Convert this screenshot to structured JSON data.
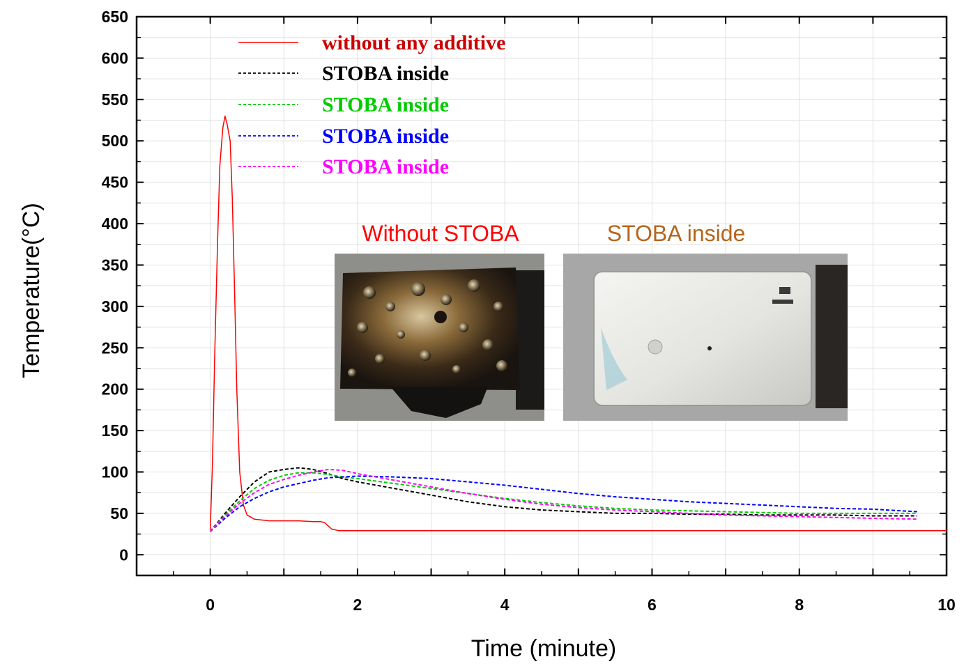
{
  "chart_data": {
    "type": "line",
    "xlabel": "Time (minute)",
    "ylabel": "Temperature(°C)",
    "xlim": [
      -1,
      10
    ],
    "ylim": [
      -25,
      650
    ],
    "x_ticks": [
      "0",
      "2",
      "4",
      "6",
      "8",
      "10"
    ],
    "y_ticks": [
      "0",
      "50",
      "100",
      "150",
      "200",
      "250",
      "300",
      "350",
      "400",
      "450",
      "500",
      "550",
      "600",
      "650"
    ],
    "grid": true,
    "legend_position": "top-left",
    "series": [
      {
        "name": "without any additive",
        "color": "#ff0000",
        "style": "solid",
        "x": [
          0,
          0.03,
          0.06,
          0.1,
          0.13,
          0.17,
          0.2,
          0.23,
          0.27,
          0.3,
          0.33,
          0.36,
          0.4,
          0.45,
          0.5,
          0.6,
          0.8,
          1.0,
          1.2,
          1.4,
          1.5,
          1.55,
          1.6,
          1.65,
          1.75,
          2.0,
          3.0,
          4.0,
          5.0,
          6.0,
          7.0,
          8.0,
          9.0,
          10.0
        ],
        "y": [
          30,
          110,
          240,
          380,
          470,
          515,
          530,
          520,
          500,
          430,
          320,
          200,
          100,
          60,
          48,
          43,
          41,
          41,
          41,
          40,
          40,
          39,
          35,
          31,
          29,
          29,
          29,
          29,
          29,
          29,
          29,
          29,
          29,
          29
        ]
      },
      {
        "name": "STOBA inside",
        "color": "#000000",
        "style": "dashed",
        "x": [
          0,
          0.2,
          0.4,
          0.6,
          0.8,
          1.0,
          1.2,
          1.4,
          1.6,
          1.8,
          2.0,
          2.5,
          3.0,
          3.5,
          4.0,
          4.5,
          5.0,
          5.5,
          6.0,
          6.5,
          7.0,
          7.5,
          8.0,
          8.5,
          9.0,
          9.6
        ],
        "y": [
          28,
          50,
          70,
          88,
          100,
          103,
          105,
          103,
          98,
          92,
          88,
          80,
          72,
          64,
          58,
          54,
          52,
          50,
          50,
          49,
          49,
          48,
          48,
          48,
          47,
          47
        ]
      },
      {
        "name": "STOBA inside",
        "color": "#00cc00",
        "style": "dashed",
        "x": [
          0,
          0.2,
          0.4,
          0.6,
          0.8,
          1.0,
          1.2,
          1.4,
          1.6,
          1.8,
          2.0,
          2.5,
          3.0,
          3.5,
          4.0,
          4.5,
          5.0,
          5.5,
          6.0,
          6.5,
          7.0,
          7.5,
          8.0,
          8.5,
          9.0,
          9.6
        ],
        "y": [
          28,
          48,
          65,
          80,
          90,
          96,
          99,
          99,
          97,
          94,
          92,
          86,
          80,
          74,
          68,
          63,
          59,
          56,
          54,
          53,
          52,
          51,
          50,
          50,
          50,
          50
        ]
      },
      {
        "name": "STOBA inside",
        "color": "#0000ff",
        "style": "dashed",
        "x": [
          0,
          0.2,
          0.4,
          0.6,
          0.8,
          1.0,
          1.2,
          1.4,
          1.6,
          1.8,
          2.0,
          2.5,
          3.0,
          3.5,
          4.0,
          4.5,
          5.0,
          5.5,
          6.0,
          6.5,
          7.0,
          7.5,
          8.0,
          8.5,
          9.0,
          9.6
        ],
        "y": [
          28,
          44,
          58,
          68,
          76,
          82,
          86,
          90,
          93,
          94,
          95,
          94,
          92,
          88,
          84,
          79,
          74,
          70,
          67,
          64,
          62,
          60,
          58,
          56,
          55,
          52
        ]
      },
      {
        "name": "STOBA inside",
        "color": "#ff00ff",
        "style": "dashed",
        "x": [
          0,
          0.2,
          0.4,
          0.6,
          0.8,
          1.0,
          1.2,
          1.4,
          1.6,
          1.8,
          2.0,
          2.5,
          3.0,
          3.5,
          4.0,
          4.5,
          5.0,
          5.5,
          6.0,
          6.5,
          7.0,
          7.5,
          8.0,
          8.5,
          9.0,
          9.6
        ],
        "y": [
          28,
          46,
          62,
          75,
          85,
          91,
          96,
          100,
          103,
          102,
          98,
          90,
          82,
          74,
          67,
          61,
          57,
          54,
          52,
          50,
          48,
          47,
          46,
          45,
          44,
          43
        ]
      }
    ],
    "inset_photos": [
      {
        "label": "Without STOBA",
        "label_color": "#ff0000",
        "name": "burned-pouch-cell"
      },
      {
        "label": "STOBA inside",
        "label_color": "#b5651d",
        "name": "intact-pouch-cell"
      }
    ]
  }
}
